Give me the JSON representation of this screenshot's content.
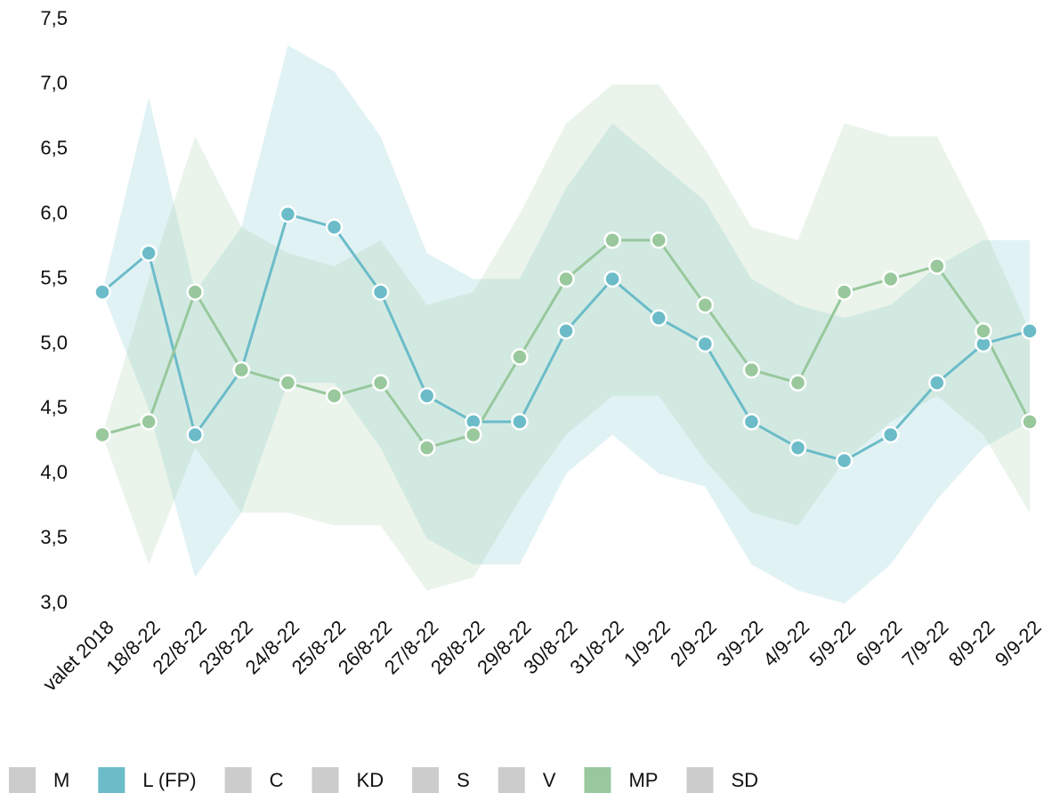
{
  "chart_data": {
    "type": "line",
    "categories": [
      "valet 2018",
      "18/8-22",
      "22/8-22",
      "23/8-22",
      "24/8-22",
      "25/8-22",
      "26/8-22",
      "27/8-22",
      "28/8-22",
      "29/8-22",
      "30/8-22",
      "31/8-22",
      "1/9-22",
      "2/9-22",
      "3/9-22",
      "4/9-22",
      "5/9-22",
      "6/9-22",
      "7/9-22",
      "8/9-22",
      "9/9-22"
    ],
    "series": [
      {
        "name": "M",
        "color": "#cccccc"
      },
      {
        "name": "L (FP)",
        "color": "#6bbcc8",
        "values": [
          5.4,
          5.7,
          4.3,
          4.8,
          6.0,
          5.9,
          5.4,
          4.6,
          4.4,
          4.4,
          5.1,
          5.5,
          5.2,
          5.0,
          4.4,
          4.2,
          4.1,
          4.3,
          4.7,
          5.0,
          5.1
        ],
        "upper": [
          5.4,
          6.9,
          5.4,
          5.9,
          7.3,
          7.1,
          6.6,
          5.7,
          5.5,
          5.5,
          6.2,
          6.7,
          6.4,
          6.1,
          5.5,
          5.3,
          5.2,
          5.3,
          5.6,
          5.8,
          5.8
        ],
        "lower": [
          5.4,
          4.5,
          3.2,
          3.7,
          4.7,
          4.7,
          4.2,
          3.5,
          3.3,
          3.3,
          4.0,
          4.3,
          4.0,
          3.9,
          3.3,
          3.1,
          3.0,
          3.3,
          3.8,
          4.2,
          4.4
        ]
      },
      {
        "name": "C",
        "color": "#cccccc"
      },
      {
        "name": "KD",
        "color": "#cccccc"
      },
      {
        "name": "S",
        "color": "#cccccc"
      },
      {
        "name": "V",
        "color": "#cccccc"
      },
      {
        "name": "MP",
        "color": "#98c89c",
        "values": [
          4.3,
          4.4,
          5.4,
          4.8,
          4.7,
          4.6,
          4.7,
          4.2,
          4.3,
          4.9,
          5.5,
          5.8,
          5.8,
          5.3,
          4.8,
          4.7,
          5.4,
          5.5,
          5.6,
          5.1,
          4.4
        ],
        "upper": [
          4.3,
          5.5,
          6.6,
          5.9,
          5.7,
          5.6,
          5.8,
          5.3,
          5.4,
          6.0,
          6.7,
          7.0,
          7.0,
          6.5,
          5.9,
          5.8,
          6.7,
          6.6,
          6.6,
          5.9,
          5.1
        ],
        "lower": [
          4.3,
          3.3,
          4.2,
          3.7,
          3.7,
          3.6,
          3.6,
          3.1,
          3.2,
          3.8,
          4.3,
          4.6,
          4.6,
          4.1,
          3.7,
          3.6,
          4.1,
          4.4,
          4.6,
          4.3,
          3.7
        ]
      },
      {
        "name": "SD",
        "color": "#cccccc"
      }
    ],
    "ylim": [
      3.0,
      7.5
    ],
    "yticks": [
      {
        "value": 3.0,
        "label": "3,0"
      },
      {
        "value": 3.5,
        "label": "3,5"
      },
      {
        "value": 4.0,
        "label": "4,0"
      },
      {
        "value": 4.5,
        "label": "4,5"
      },
      {
        "value": 5.0,
        "label": "5,0"
      },
      {
        "value": 5.5,
        "label": "5,5"
      },
      {
        "value": 6.0,
        "label": "6,0"
      },
      {
        "value": 6.5,
        "label": "6,5"
      },
      {
        "value": 7.0,
        "label": "7,0"
      },
      {
        "value": 7.5,
        "label": "7,5"
      }
    ],
    "grid": false,
    "legend": "bottom"
  }
}
